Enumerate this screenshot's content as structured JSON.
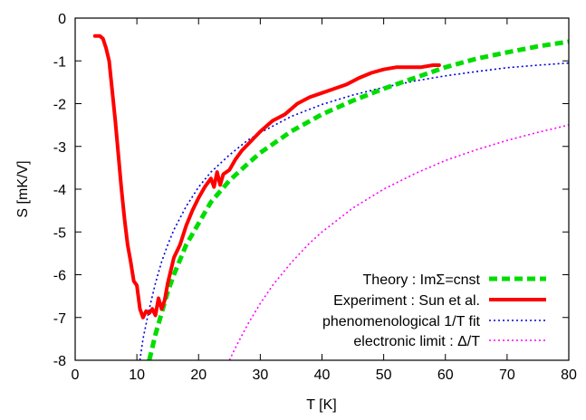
{
  "chart_data": {
    "type": "line",
    "title": "",
    "xlabel": "T [K]",
    "ylabel": "S [mK/V]",
    "xlim": [
      0,
      80
    ],
    "ylim": [
      -8,
      0
    ],
    "xticks": [
      0,
      10,
      20,
      30,
      40,
      50,
      60,
      70,
      80
    ],
    "yticks": [
      0,
      -1,
      -2,
      -3,
      -4,
      -5,
      -6,
      -7,
      -8
    ],
    "grid": false,
    "legend_position": "bottom-right",
    "series": [
      {
        "name": "Theory : ImΣ=cnst",
        "color": "#00dd00",
        "style": "dashed",
        "x": [
          12,
          13,
          14,
          15,
          16,
          18,
          20,
          22,
          25,
          28,
          30,
          35,
          40,
          45,
          50,
          55,
          60,
          65,
          70,
          75,
          80
        ],
        "y": [
          -8.0,
          -7.4,
          -6.9,
          -6.4,
          -6.0,
          -5.3,
          -4.8,
          -4.3,
          -3.8,
          -3.4,
          -3.15,
          -2.65,
          -2.25,
          -1.93,
          -1.65,
          -1.4,
          -1.15,
          -0.95,
          -0.8,
          -0.66,
          -0.55
        ]
      },
      {
        "name": "Experiment : Sun et al.",
        "color": "#ff0000",
        "style": "solid",
        "x": [
          3.2,
          4,
          4.5,
          5,
          5.5,
          6,
          6.5,
          7,
          7.5,
          8,
          8.5,
          9,
          9.5,
          10,
          10.5,
          11,
          11.5,
          12,
          12.5,
          13,
          13.5,
          14,
          14.5,
          15,
          16,
          17,
          18,
          19,
          20,
          21,
          22,
          22.5,
          23,
          23.5,
          24,
          25,
          26,
          27,
          28,
          30,
          32,
          34,
          36,
          38,
          40,
          42,
          44,
          46,
          48,
          50,
          52,
          54,
          56,
          58,
          59
        ],
        "y": [
          -0.42,
          -0.42,
          -0.48,
          -0.7,
          -1.0,
          -1.7,
          -2.4,
          -3.2,
          -4.0,
          -4.7,
          -5.3,
          -5.7,
          -6.15,
          -6.25,
          -6.8,
          -7.0,
          -6.85,
          -6.9,
          -6.8,
          -6.95,
          -6.55,
          -6.8,
          -6.6,
          -6.2,
          -5.6,
          -5.3,
          -4.85,
          -4.5,
          -4.2,
          -3.95,
          -3.75,
          -3.95,
          -3.6,
          -3.9,
          -3.65,
          -3.55,
          -3.3,
          -3.1,
          -2.95,
          -2.65,
          -2.4,
          -2.25,
          -2.0,
          -1.85,
          -1.75,
          -1.65,
          -1.55,
          -1.4,
          -1.28,
          -1.2,
          -1.15,
          -1.15,
          -1.15,
          -1.1,
          -1.1
        ]
      },
      {
        "name": "phenomenological 1/T fit",
        "color": "#0000dd",
        "style": "dotted",
        "x": [
          10.5,
          11,
          12,
          13,
          14,
          15,
          16,
          18,
          20,
          22,
          25,
          28,
          30,
          35,
          40,
          45,
          50,
          55,
          60,
          65,
          70,
          75,
          80
        ],
        "y": [
          -8.0,
          -7.5,
          -6.8,
          -6.2,
          -5.7,
          -5.3,
          -4.95,
          -4.4,
          -3.95,
          -3.6,
          -3.2,
          -2.85,
          -2.68,
          -2.3,
          -2.02,
          -1.8,
          -1.62,
          -1.47,
          -1.35,
          -1.25,
          -1.16,
          -1.1,
          -1.05
        ]
      },
      {
        "name": "electronic limit : Δ/T",
        "color": "#ff00ff",
        "style": "dotted",
        "x": [
          25,
          26,
          28,
          30,
          32,
          35,
          38,
          40,
          45,
          50,
          55,
          60,
          65,
          70,
          75,
          80
        ],
        "y": [
          -8.0,
          -7.7,
          -7.15,
          -6.67,
          -6.25,
          -5.72,
          -5.26,
          -5.0,
          -4.44,
          -4.0,
          -3.64,
          -3.33,
          -3.08,
          -2.86,
          -2.67,
          -2.5
        ]
      }
    ]
  }
}
